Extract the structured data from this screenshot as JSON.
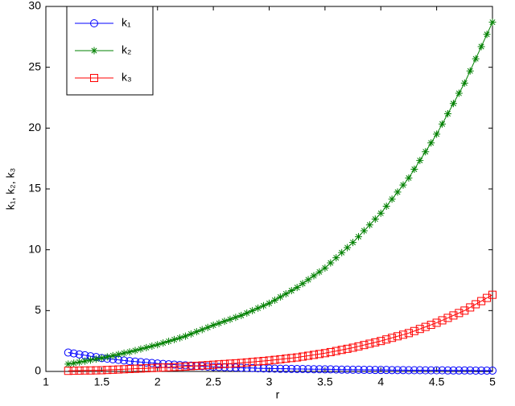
{
  "chart_data": {
    "type": "line",
    "x_label": "r",
    "y_label": "k₁, k₂, k₃",
    "x": [
      1.2,
      1.25,
      1.3,
      1.35,
      1.4,
      1.45,
      1.5,
      1.55,
      1.6,
      1.65,
      1.7,
      1.75,
      1.8,
      1.85,
      1.9,
      1.95,
      2.0,
      2.05,
      2.1,
      2.15,
      2.2,
      2.25,
      2.3,
      2.35,
      2.4,
      2.45,
      2.5,
      2.55,
      2.6,
      2.65,
      2.7,
      2.75,
      2.8,
      2.85,
      2.9,
      2.95,
      3.0,
      3.05,
      3.1,
      3.15,
      3.2,
      3.25,
      3.3,
      3.35,
      3.4,
      3.45,
      3.5,
      3.55,
      3.6,
      3.65,
      3.7,
      3.75,
      3.8,
      3.85,
      3.9,
      3.95,
      4.0,
      4.05,
      4.1,
      4.15,
      4.2,
      4.25,
      4.3,
      4.35,
      4.4,
      4.45,
      4.5,
      4.55,
      4.6,
      4.65,
      4.7,
      4.75,
      4.8,
      4.85,
      4.9,
      4.95,
      5.0
    ],
    "series": [
      {
        "name": "k₁",
        "color": "#0000ff",
        "marker": "circle",
        "values": [
          1.55,
          1.48,
          1.4,
          1.33,
          1.25,
          1.18,
          1.1,
          1.05,
          1.0,
          0.95,
          0.9,
          0.85,
          0.81,
          0.77,
          0.73,
          0.69,
          0.65,
          0.62,
          0.59,
          0.56,
          0.53,
          0.5,
          0.48,
          0.45,
          0.43,
          0.4,
          0.38,
          0.36,
          0.35,
          0.33,
          0.32,
          0.3,
          0.29,
          0.28,
          0.26,
          0.25,
          0.24,
          0.23,
          0.22,
          0.22,
          0.21,
          0.2,
          0.2,
          0.19,
          0.18,
          0.18,
          0.17,
          0.17,
          0.16,
          0.15,
          0.15,
          0.14,
          0.14,
          0.13,
          0.13,
          0.12,
          0.12,
          0.12,
          0.11,
          0.11,
          0.11,
          0.1,
          0.1,
          0.1,
          0.09,
          0.09,
          0.09,
          0.09,
          0.08,
          0.08,
          0.08,
          0.08,
          0.08,
          0.07,
          0.07,
          0.07,
          0.07
        ]
      },
      {
        "name": "k₂",
        "color": "#008000",
        "marker": "asterisk",
        "values": [
          0.6,
          0.68,
          0.77,
          0.85,
          0.93,
          1.02,
          1.1,
          1.2,
          1.3,
          1.4,
          1.5,
          1.6,
          1.72,
          1.84,
          1.96,
          2.08,
          2.2,
          2.34,
          2.48,
          2.62,
          2.76,
          2.9,
          3.08,
          3.26,
          3.44,
          3.62,
          3.8,
          3.96,
          4.12,
          4.28,
          4.44,
          4.6,
          4.8,
          5.0,
          5.2,
          5.4,
          5.6,
          5.86,
          6.12,
          6.38,
          6.64,
          6.9,
          7.22,
          7.54,
          7.86,
          8.18,
          8.5,
          8.92,
          9.34,
          9.76,
          10.18,
          10.6,
          11.08,
          11.56,
          12.04,
          12.52,
          13.0,
          13.58,
          14.16,
          14.74,
          15.32,
          15.9,
          16.62,
          17.34,
          18.06,
          18.78,
          19.5,
          20.34,
          21.18,
          22.02,
          22.86,
          23.7,
          24.7,
          25.7,
          26.7,
          27.7,
          28.7
        ]
      },
      {
        "name": "k₃",
        "color": "#ff0000",
        "marker": "square",
        "values": [
          0.05,
          0.06,
          0.07,
          0.08,
          0.08,
          0.09,
          0.1,
          0.12,
          0.14,
          0.16,
          0.18,
          0.2,
          0.22,
          0.24,
          0.26,
          0.28,
          0.3,
          0.32,
          0.34,
          0.36,
          0.38,
          0.4,
          0.43,
          0.46,
          0.49,
          0.52,
          0.55,
          0.58,
          0.61,
          0.64,
          0.67,
          0.7,
          0.74,
          0.78,
          0.82,
          0.86,
          0.9,
          0.95,
          1.0,
          1.05,
          1.1,
          1.15,
          1.22,
          1.29,
          1.36,
          1.43,
          1.5,
          1.59,
          1.68,
          1.77,
          1.86,
          1.95,
          2.06,
          2.17,
          2.28,
          2.39,
          2.5,
          2.63,
          2.76,
          2.89,
          3.02,
          3.15,
          3.32,
          3.49,
          3.66,
          3.83,
          4.0,
          4.2,
          4.4,
          4.6,
          4.8,
          5.0,
          5.26,
          5.52,
          5.78,
          6.04,
          6.3
        ]
      }
    ],
    "xlim": [
      1,
      5
    ],
    "xticks": [
      1,
      1.5,
      2,
      2.5,
      3,
      3.5,
      4,
      4.5,
      5
    ],
    "ylim": [
      0,
      30
    ],
    "yticks": [
      0,
      5,
      10,
      15,
      20,
      25,
      30
    ],
    "grid": false,
    "legend": "upper left"
  }
}
